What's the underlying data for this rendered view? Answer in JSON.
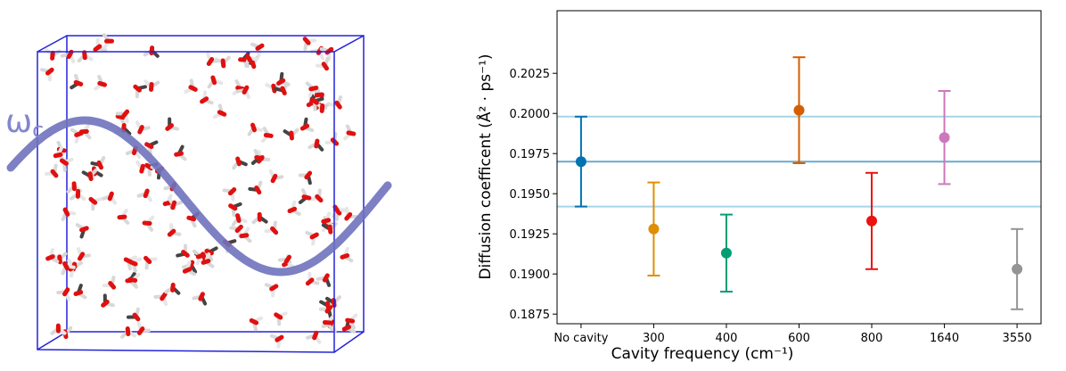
{
  "illustration": {
    "label": "ω",
    "subscript": "c"
  },
  "chart_data": {
    "type": "errorbar",
    "x_label": "Cavity frequency (cm⁻¹)",
    "y_label": "Diffusion coefficent (Å² · ps⁻¹)",
    "categories": [
      "No cavity",
      "300",
      "400",
      "600",
      "800",
      "1640",
      "3550"
    ],
    "values": [
      0.197,
      0.1928,
      0.1913,
      0.2002,
      0.1933,
      0.1985,
      0.1903
    ],
    "errors": [
      0.0028,
      0.0029,
      0.0024,
      0.0033,
      0.003,
      0.0029,
      0.0025
    ],
    "colors": [
      "#0173b2",
      "#de8f05",
      "#029e73",
      "#d55e00",
      "#ee1111",
      "#cc78bc",
      "#949494"
    ],
    "reference_color": "#a6d5e8",
    "ylim": [
      0.1869,
      0.2064
    ],
    "yticks": [
      0.1875,
      {
        "value": 0.19,
        "label": "0.1900"
      },
      0.1925,
      {
        "value": 0.195,
        "label": "0.1950"
      },
      0.1975,
      {
        "value": 0.2,
        "label": "0.2000"
      },
      0.2025
    ]
  }
}
